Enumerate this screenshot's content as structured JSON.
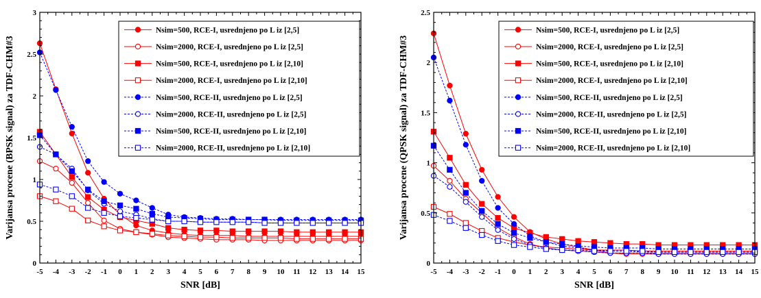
{
  "chart_data": [
    {
      "type": "line",
      "xlabel": "SNR [dB]",
      "ylabel": "Varijansa procene (BPSK signal) za TDF-CHM#3",
      "xlim": [
        -5,
        15
      ],
      "ylim": [
        0,
        3
      ],
      "xticks": [
        -5,
        -4,
        -3,
        -2,
        -1,
        0,
        1,
        2,
        3,
        4,
        5,
        6,
        7,
        8,
        9,
        10,
        11,
        12,
        13,
        14,
        15
      ],
      "xtick_labels": [
        "-5",
        "-4",
        "-3",
        "-2",
        "-1",
        "0",
        "1",
        "2",
        "3",
        "4",
        "5",
        "6",
        "7",
        "8",
        "9",
        "10",
        "11",
        "12",
        "13",
        "14",
        "15"
      ],
      "yticks": [
        0,
        0.5,
        1,
        1.5,
        2,
        2.5,
        3
      ],
      "ytick_labels": [
        "0",
        "0.5",
        "1",
        "1.5",
        "2",
        "2.5",
        "3"
      ],
      "legend_position": "top-right",
      "x": [
        -5,
        -4,
        -3,
        -2,
        -1,
        0,
        1,
        2,
        3,
        4,
        5,
        6,
        7,
        8,
        9,
        10,
        11,
        12,
        13,
        14,
        15
      ],
      "series": [
        {
          "name": "Nsim=500, RCE-I, usrednjeno po L iz [2,5]",
          "color": "#ff0000",
          "line": "solid",
          "marker": "circle",
          "filled": true,
          "values": [
            2.63,
            2.08,
            1.55,
            1.08,
            0.77,
            0.58,
            0.45,
            0.39,
            0.36,
            0.34,
            0.33,
            0.33,
            0.33,
            0.32,
            0.32,
            0.32,
            0.32,
            0.32,
            0.32,
            0.32,
            0.32
          ]
        },
        {
          "name": "Nsim=2000, RCE-I, usrednjeno po L iz [2,5]",
          "color": "#ff0000",
          "line": "solid",
          "marker": "circle",
          "filled": false,
          "values": [
            1.22,
            1.13,
            0.96,
            0.72,
            0.51,
            0.41,
            0.37,
            0.34,
            0.31,
            0.3,
            0.29,
            0.28,
            0.28,
            0.28,
            0.27,
            0.27,
            0.27,
            0.27,
            0.27,
            0.27,
            0.27
          ]
        },
        {
          "name": "Nsim=500, RCE-I, usrednjeno po L iz [2,10]",
          "color": "#ff0000",
          "line": "solid",
          "marker": "square",
          "filled": true,
          "values": [
            1.57,
            1.3,
            1.03,
            0.79,
            0.64,
            0.55,
            0.51,
            0.47,
            0.42,
            0.4,
            0.39,
            0.39,
            0.38,
            0.38,
            0.38,
            0.38,
            0.37,
            0.37,
            0.37,
            0.37,
            0.37
          ]
        },
        {
          "name": "Nsim=2000, RCE-I, usrednjeno po L iz [2,10]",
          "color": "#ff0000",
          "line": "solid",
          "marker": "square",
          "filled": false,
          "values": [
            0.8,
            0.74,
            0.65,
            0.51,
            0.44,
            0.39,
            0.37,
            0.35,
            0.33,
            0.32,
            0.31,
            0.31,
            0.3,
            0.3,
            0.3,
            0.3,
            0.29,
            0.29,
            0.29,
            0.29,
            0.29
          ]
        },
        {
          "name": "Nsim=500, RCE-II, usrednjeno po L iz [2,5]",
          "color": "#0000ff",
          "line": "dashed",
          "marker": "circle",
          "filled": true,
          "values": [
            2.52,
            2.07,
            1.63,
            1.22,
            0.97,
            0.83,
            0.75,
            0.66,
            0.58,
            0.55,
            0.54,
            0.53,
            0.53,
            0.52,
            0.52,
            0.52,
            0.52,
            0.52,
            0.52,
            0.52,
            0.52
          ]
        },
        {
          "name": "Nsim=2000, RCE-II, usrednjeno po L iz [2,5]",
          "color": "#0000ff",
          "line": "dashed",
          "marker": "circle",
          "filled": false,
          "values": [
            1.39,
            1.3,
            1.13,
            0.87,
            0.71,
            0.62,
            0.58,
            0.53,
            0.5,
            0.5,
            0.49,
            0.49,
            0.49,
            0.49,
            0.48,
            0.48,
            0.48,
            0.48,
            0.48,
            0.48,
            0.48
          ]
        },
        {
          "name": "Nsim=500, RCE-II, usrednjeno po L iz [2,10]",
          "color": "#0000ff",
          "line": "dashed",
          "marker": "square",
          "filled": true,
          "values": [
            1.53,
            1.3,
            1.1,
            0.88,
            0.74,
            0.69,
            0.65,
            0.59,
            0.55,
            0.54,
            0.53,
            0.52,
            0.52,
            0.52,
            0.52,
            0.51,
            0.51,
            0.51,
            0.51,
            0.51,
            0.51
          ]
        },
        {
          "name": "Nsim=2000, RCE-II, usrednjeno po L iz [2,10]",
          "color": "#0000ff",
          "line": "dashed",
          "marker": "square",
          "filled": false,
          "values": [
            0.94,
            0.88,
            0.8,
            0.66,
            0.6,
            0.56,
            0.54,
            0.52,
            0.5,
            0.5,
            0.49,
            0.49,
            0.49,
            0.49,
            0.48,
            0.48,
            0.48,
            0.48,
            0.48,
            0.48,
            0.48
          ]
        }
      ]
    },
    {
      "type": "line",
      "xlabel": "SNR [dB]",
      "ylabel": "Varijansa procene (QPSK signal) za TDF-CHM#3",
      "xlim": [
        -5,
        15
      ],
      "ylim": [
        0,
        2.5
      ],
      "xticks": [
        -5,
        -4,
        -3,
        -2,
        -1,
        0,
        1,
        2,
        3,
        4,
        5,
        6,
        7,
        8,
        9,
        10,
        11,
        12,
        13,
        14,
        15
      ],
      "xtick_labels": [
        "-5",
        "-4",
        "-3",
        "-2",
        "-1",
        "0",
        "1",
        "2",
        "3",
        "4",
        "5",
        "6",
        "7",
        "8",
        "9",
        "10",
        "11",
        "12",
        "13",
        "14",
        "15"
      ],
      "yticks": [
        0,
        0.5,
        1,
        1.5,
        2,
        2.5
      ],
      "ytick_labels": [
        "0",
        "0.5",
        "1",
        "1.5",
        "2",
        "2.5"
      ],
      "legend_position": "top-right",
      "x": [
        -5,
        -4,
        -3,
        -2,
        -1,
        0,
        1,
        2,
        3,
        4,
        5,
        6,
        7,
        8,
        9,
        10,
        11,
        12,
        13,
        14,
        15
      ],
      "series": [
        {
          "name": "Nsim=500, RCE-I, usrednjeno po L iz [2,5]",
          "color": "#ff0000",
          "line": "solid",
          "marker": "circle",
          "filled": true,
          "values": [
            2.29,
            1.77,
            1.29,
            0.93,
            0.66,
            0.46,
            0.31,
            0.24,
            0.19,
            0.16,
            0.13,
            0.1,
            0.1,
            0.1,
            0.1,
            0.1,
            0.1,
            0.1,
            0.1,
            0.1,
            0.1
          ]
        },
        {
          "name": "Nsim=2000, RCE-I, usrednjeno po L iz [2,5]",
          "color": "#ff0000",
          "line": "solid",
          "marker": "circle",
          "filled": false,
          "values": [
            0.97,
            0.82,
            0.64,
            0.5,
            0.35,
            0.26,
            0.19,
            0.15,
            0.13,
            0.12,
            0.11,
            0.1,
            0.09,
            0.09,
            0.09,
            0.09,
            0.09,
            0.09,
            0.09,
            0.09,
            0.09
          ]
        },
        {
          "name": "Nsim=500, RCE-I, usrednjeno po L iz [2,10]",
          "color": "#ff0000",
          "line": "solid",
          "marker": "square",
          "filled": true,
          "values": [
            1.31,
            1.05,
            0.78,
            0.59,
            0.45,
            0.35,
            0.3,
            0.26,
            0.24,
            0.22,
            0.21,
            0.2,
            0.19,
            0.19,
            0.18,
            0.18,
            0.18,
            0.18,
            0.18,
            0.18,
            0.18
          ]
        },
        {
          "name": "Nsim=2000, RCE-I, usrednjeno po L iz [2,10]",
          "color": "#ff0000",
          "line": "solid",
          "marker": "square",
          "filled": false,
          "values": [
            0.56,
            0.49,
            0.4,
            0.32,
            0.25,
            0.21,
            0.18,
            0.16,
            0.15,
            0.14,
            0.13,
            0.13,
            0.13,
            0.12,
            0.12,
            0.12,
            0.12,
            0.12,
            0.12,
            0.12,
            0.12
          ]
        },
        {
          "name": "Nsim=500, RCE-II, usrednjeno po L iz [2,5]",
          "color": "#0000ff",
          "line": "dashed",
          "marker": "circle",
          "filled": true,
          "values": [
            2.05,
            1.62,
            1.18,
            0.82,
            0.55,
            0.39,
            0.27,
            0.21,
            0.17,
            0.15,
            0.13,
            0.12,
            0.12,
            0.11,
            0.11,
            0.11,
            0.11,
            0.11,
            0.11,
            0.11,
            0.11
          ]
        },
        {
          "name": "Nsim=2000, RCE-II, usrednjeno po L iz [2,5]",
          "color": "#0000ff",
          "line": "dashed",
          "marker": "circle",
          "filled": false,
          "values": [
            0.87,
            0.76,
            0.61,
            0.46,
            0.33,
            0.24,
            0.18,
            0.15,
            0.13,
            0.12,
            0.11,
            0.1,
            0.1,
            0.1,
            0.09,
            0.09,
            0.09,
            0.09,
            0.09,
            0.09,
            0.09
          ]
        },
        {
          "name": "Nsim=500, RCE-II, usrednjeno po L iz [2,10]",
          "color": "#0000ff",
          "line": "dashed",
          "marker": "square",
          "filled": true,
          "values": [
            1.17,
            0.93,
            0.7,
            0.52,
            0.39,
            0.3,
            0.25,
            0.21,
            0.19,
            0.17,
            0.16,
            0.15,
            0.15,
            0.15,
            0.14,
            0.14,
            0.14,
            0.14,
            0.14,
            0.14,
            0.14
          ]
        },
        {
          "name": "Nsim=2000, RCE-II, usrednjeno po L iz [2,10]",
          "color": "#0000ff",
          "line": "dashed",
          "marker": "square",
          "filled": false,
          "values": [
            0.48,
            0.42,
            0.35,
            0.28,
            0.22,
            0.18,
            0.16,
            0.14,
            0.13,
            0.13,
            0.12,
            0.12,
            0.12,
            0.12,
            0.11,
            0.11,
            0.11,
            0.11,
            0.11,
            0.11,
            0.11
          ]
        }
      ]
    }
  ]
}
